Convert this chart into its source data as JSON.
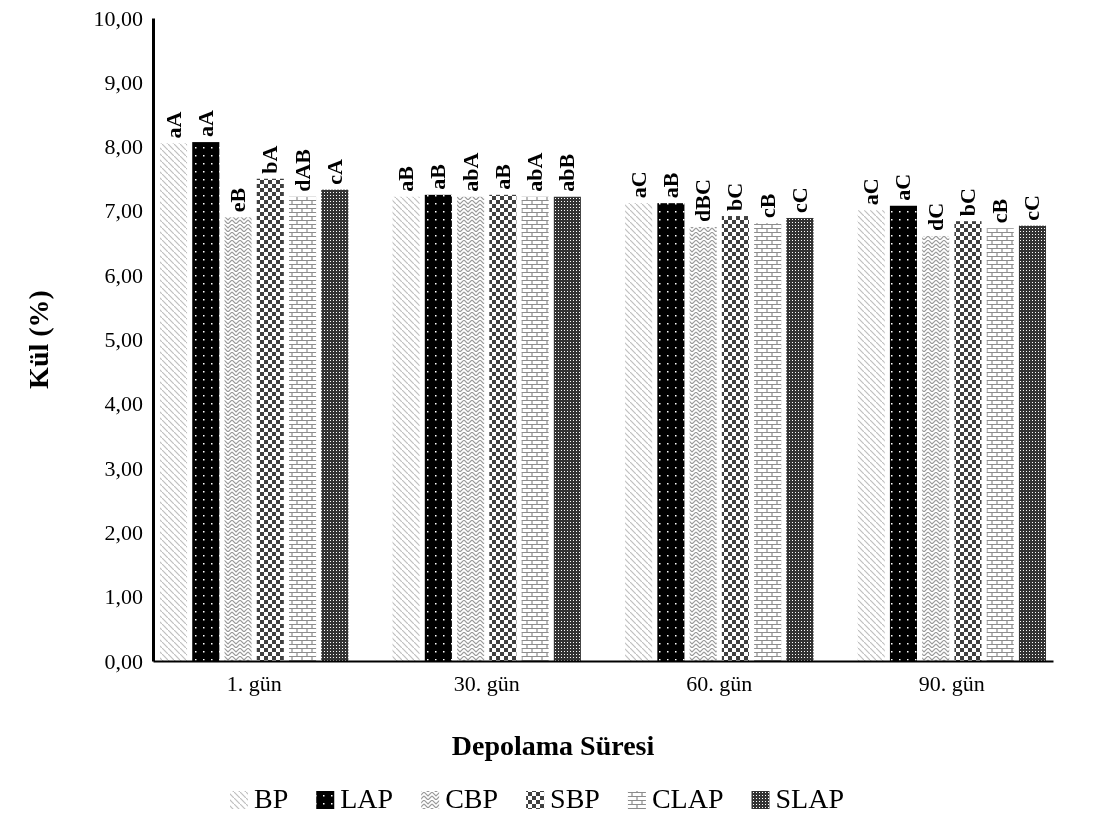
{
  "chart_data": {
    "type": "bar",
    "xlabel": "Depolama Süresi",
    "ylabel": "Kül (%)",
    "categories": [
      "1. gün",
      "30. gün",
      "60. gün",
      "90. gün"
    ],
    "ylim": [
      0,
      10
    ],
    "yticks": [
      {
        "value": 0,
        "label": "0,00"
      },
      {
        "value": 1,
        "label": "1,00"
      },
      {
        "value": 2,
        "label": "2,00"
      },
      {
        "value": 3,
        "label": "3,00"
      },
      {
        "value": 4,
        "label": "4,00"
      },
      {
        "value": 5,
        "label": "5,00"
      },
      {
        "value": 6,
        "label": "6,00"
      },
      {
        "value": 7,
        "label": "7,00"
      },
      {
        "value": 8,
        "label": "8,00"
      },
      {
        "value": 9,
        "label": "9,00"
      },
      {
        "value": 10,
        "label": "10,00"
      }
    ],
    "grid": false,
    "legend": "bottom",
    "series": [
      {
        "name": "BP",
        "color": "#bfbfbf",
        "values": [
          8.05,
          7.22,
          7.12,
          7.01
        ],
        "value_labels": [
          "aA",
          "aB",
          "aC",
          "aC"
        ]
      },
      {
        "name": "LAP",
        "color": "#000000",
        "values": [
          8.07,
          7.25,
          7.12,
          7.08
        ],
        "value_labels": [
          "aA",
          "aB",
          "aB",
          "aC"
        ]
      },
      {
        "name": "CBP",
        "color": "#9a9a9a",
        "values": [
          6.9,
          7.22,
          6.75,
          6.61
        ],
        "value_labels": [
          "eB",
          "abA",
          "dBC",
          "dC"
        ]
      },
      {
        "name": "SBP",
        "color": "#404040",
        "values": [
          7.5,
          7.25,
          6.92,
          6.84
        ],
        "value_labels": [
          "bA",
          "aB",
          "bC",
          "bC"
        ]
      },
      {
        "name": "CLAP",
        "color": "#8c8c8c",
        "values": [
          7.22,
          7.22,
          6.81,
          6.73
        ],
        "value_labels": [
          "dAB",
          "abA",
          "cB",
          "cB"
        ]
      },
      {
        "name": "SLAP",
        "color": "#333333",
        "values": [
          7.33,
          7.22,
          6.89,
          6.77
        ],
        "value_labels": [
          "cA",
          "abB",
          "cC",
          "cC"
        ]
      }
    ]
  }
}
